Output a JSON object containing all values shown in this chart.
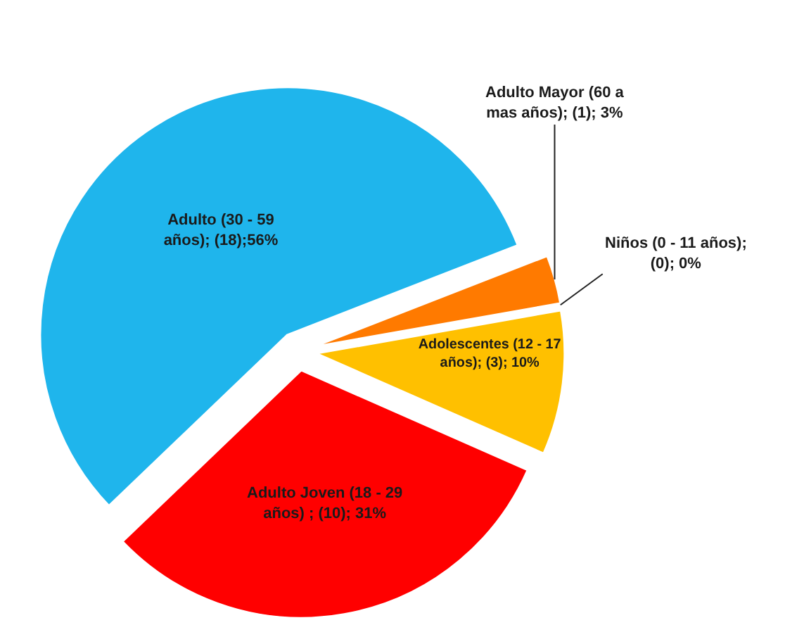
{
  "chart_data": {
    "type": "pie",
    "categories": [
      "Niños (0 - 11 años)",
      "Adolescentes (12 - 17 años)",
      "Adulto Joven (18 - 29 años)",
      "Adulto (30 - 59 años)",
      "Adulto Mayor (60 a mas años)"
    ],
    "values": [
      0,
      3,
      10,
      18,
      1
    ],
    "value_labels": [
      "; (0); 0%",
      "; (3); 10%",
      " ; (10); 31%",
      "; (18);56%",
      "; (1); 3%"
    ],
    "colors": [
      "#5b9bd5",
      "#ffc000",
      "#ff0000",
      "#1fb5ec",
      "#ff7a00"
    ],
    "legend": false
  }
}
